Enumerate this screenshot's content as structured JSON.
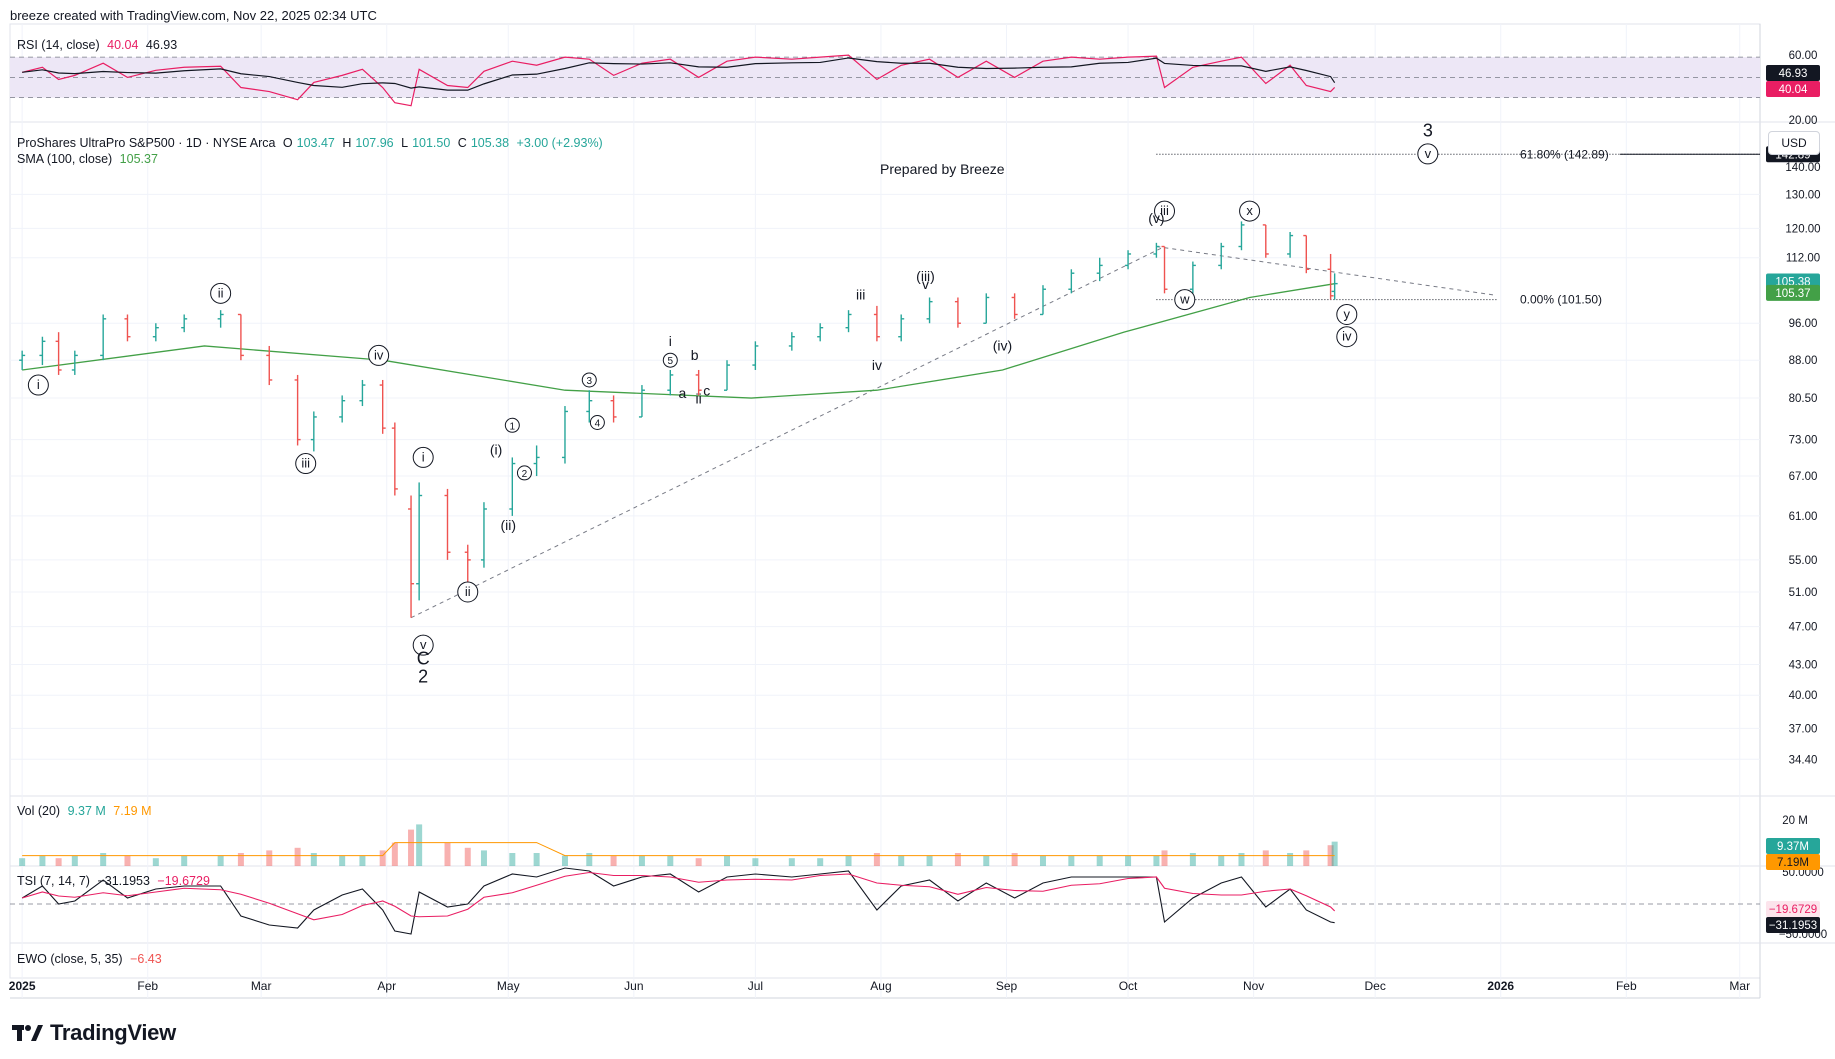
{
  "header": {
    "text": "breeze created with TradingView.com, Nov 22, 2025 02:34 UTC"
  },
  "brand": {
    "name": "TradingView"
  },
  "currency_button": "USD",
  "prepared_label": "Prepared by Breeze",
  "colors": {
    "up": "#26a69a",
    "down": "#ef5350",
    "sma": "#43a047",
    "rsi": "#e91e63",
    "rsi_ma": "#131722",
    "rsi_band": "#ede7f6",
    "vol_ma": "#ff9800",
    "tsi": "#131722",
    "tsi_signal": "#e91e63",
    "last_price_badge": "#26a69a"
  },
  "legends": {
    "rsi": {
      "name": "RSI (14, close)",
      "v1": "40.04",
      "v2": "46.93"
    },
    "main": {
      "name": "ProShares UltraPro S&P500 · 1D · NYSE Arca",
      "o_label": "O",
      "o": "103.47",
      "h_label": "H",
      "h": "107.96",
      "l_label": "L",
      "l": "101.50",
      "c_label": "C",
      "c": "105.38",
      "chg": "+3.00 (+2.93%)"
    },
    "sma": {
      "name": "SMA (100, close)",
      "v": "105.37"
    },
    "vol": {
      "name": "Vol (20)",
      "v1": "9.37 M",
      "v2": "7.19 M"
    },
    "tsi": {
      "name": "TSI (7, 14, 7)",
      "v1": "−31.1953",
      "v2": "−19.6729"
    },
    "ewo": {
      "name": "EWO (close, 5, 35)",
      "v": "−6.43"
    }
  },
  "axes": {
    "price_ticks": [
      "130.00",
      "120.00",
      "112.00",
      "96.00",
      "88.00",
      "80.50",
      "73.00",
      "67.00",
      "61.00",
      "55.00",
      "51.00",
      "47.00",
      "43.00",
      "40.00",
      "37.00",
      "34.40"
    ],
    "price_ticks_partial": [
      "140.00"
    ],
    "rsi_ticks": [
      "60.00",
      "20.00"
    ],
    "vol_ticks": [
      "20 M"
    ],
    "tsi_ticks": [
      "50.0000",
      "−50.0000"
    ],
    "time_labels": [
      "2025",
      "Feb",
      "Mar",
      "Apr",
      "May",
      "Jun",
      "Jul",
      "Aug",
      "Sep",
      "Oct",
      "Nov",
      "Dec",
      "2026",
      "Feb",
      "Mar"
    ],
    "scale": "log"
  },
  "badges": {
    "rsi_ma": "46.93",
    "rsi": "40.04",
    "fib": "142.89",
    "close": "105.38",
    "sma": "105.37",
    "vol": "9.37M",
    "vol_ma": "7.19M",
    "tsi_signal": "−19.6729",
    "tsi": "−31.1953"
  },
  "fib": {
    "top_label": "61.80% (142.89)",
    "bottom_label": "0.00% (101.50)"
  },
  "annotations": {
    "circled": [
      "i",
      "ii",
      "iii",
      "iv",
      "v",
      "i",
      "ii",
      "iii",
      "iv",
      "v",
      "w",
      "x",
      "y"
    ],
    "numbers": [
      "1",
      "2",
      "3",
      "4",
      "5"
    ],
    "plain": [
      "C",
      "2",
      "3",
      "(i)",
      "(ii)",
      "(iii)",
      "(iv)",
      "(v)",
      "i",
      "ii",
      "iii",
      "iv",
      "v",
      "a",
      "b",
      "c"
    ]
  },
  "chart_data": {
    "type": "candlestick",
    "title": "ProShares UltraPro S&P500 · 1D · NYSE Arca",
    "series": [
      {
        "name": "OHLC",
        "ohlc": [
          {
            "date": "2025-01-01",
            "o": 88,
            "h": 90,
            "l": 86,
            "c": 89
          },
          {
            "date": "2025-01-06",
            "o": 89,
            "h": 93,
            "l": 87,
            "c": 92
          },
          {
            "date": "2025-01-10",
            "o": 92,
            "h": 94,
            "l": 85,
            "c": 86
          },
          {
            "date": "2025-01-14",
            "o": 86,
            "h": 90,
            "l": 85,
            "c": 89
          },
          {
            "date": "2025-01-21",
            "o": 89,
            "h": 98,
            "l": 88,
            "c": 97
          },
          {
            "date": "2025-01-27",
            "o": 97,
            "h": 98,
            "l": 92,
            "c": 93
          },
          {
            "date": "2025-02-03",
            "o": 93,
            "h": 96,
            "l": 92,
            "c": 95
          },
          {
            "date": "2025-02-10",
            "o": 95,
            "h": 98,
            "l": 94,
            "c": 97
          },
          {
            "date": "2025-02-19",
            "o": 97,
            "h": 99,
            "l": 95,
            "c": 98
          },
          {
            "date": "2025-02-24",
            "o": 98,
            "h": 98,
            "l": 88,
            "c": 89
          },
          {
            "date": "2025-03-03",
            "o": 89,
            "h": 91,
            "l": 83,
            "c": 84
          },
          {
            "date": "2025-03-10",
            "o": 84,
            "h": 85,
            "l": 72,
            "c": 73
          },
          {
            "date": "2025-03-14",
            "o": 73,
            "h": 78,
            "l": 71,
            "c": 77
          },
          {
            "date": "2025-03-21",
            "o": 77,
            "h": 81,
            "l": 76,
            "c": 80
          },
          {
            "date": "2025-03-26",
            "o": 80,
            "h": 84,
            "l": 79,
            "c": 83
          },
          {
            "date": "2025-03-31",
            "o": 83,
            "h": 84,
            "l": 74,
            "c": 75
          },
          {
            "date": "2025-04-03",
            "o": 75,
            "h": 76,
            "l": 64,
            "c": 65
          },
          {
            "date": "2025-04-07",
            "o": 62,
            "h": 64,
            "l": 48,
            "c": 52
          },
          {
            "date": "2025-04-09",
            "o": 52,
            "h": 66,
            "l": 50,
            "c": 64
          },
          {
            "date": "2025-04-16",
            "o": 64,
            "h": 65,
            "l": 55,
            "c": 56
          },
          {
            "date": "2025-04-21",
            "o": 56,
            "h": 57,
            "l": 52,
            "c": 55
          },
          {
            "date": "2025-04-25",
            "o": 55,
            "h": 63,
            "l": 54,
            "c": 62
          },
          {
            "date": "2025-05-02",
            "o": 62,
            "h": 70,
            "l": 61,
            "c": 69
          },
          {
            "date": "2025-05-08",
            "o": 69,
            "h": 72,
            "l": 67,
            "c": 70
          },
          {
            "date": "2025-05-15",
            "o": 70,
            "h": 79,
            "l": 69,
            "c": 78
          },
          {
            "date": "2025-05-21",
            "o": 78,
            "h": 82,
            "l": 76,
            "c": 80
          },
          {
            "date": "2025-05-27",
            "o": 80,
            "h": 81,
            "l": 76,
            "c": 77
          },
          {
            "date": "2025-06-03",
            "o": 77,
            "h": 83,
            "l": 77,
            "c": 82
          },
          {
            "date": "2025-06-10",
            "o": 82,
            "h": 86,
            "l": 81,
            "c": 85
          },
          {
            "date": "2025-06-17",
            "o": 85,
            "h": 86,
            "l": 81,
            "c": 82
          },
          {
            "date": "2025-06-24",
            "o": 82,
            "h": 88,
            "l": 82,
            "c": 87
          },
          {
            "date": "2025-07-01",
            "o": 87,
            "h": 92,
            "l": 86,
            "c": 91
          },
          {
            "date": "2025-07-10",
            "o": 91,
            "h": 94,
            "l": 90,
            "c": 93
          },
          {
            "date": "2025-07-17",
            "o": 93,
            "h": 96,
            "l": 92,
            "c": 95
          },
          {
            "date": "2025-07-24",
            "o": 95,
            "h": 99,
            "l": 94,
            "c": 98
          },
          {
            "date": "2025-07-31",
            "o": 98,
            "h": 100,
            "l": 92,
            "c": 93
          },
          {
            "date": "2025-08-06",
            "o": 93,
            "h": 98,
            "l": 92,
            "c": 97
          },
          {
            "date": "2025-08-13",
            "o": 97,
            "h": 102,
            "l": 96,
            "c": 101
          },
          {
            "date": "2025-08-20",
            "o": 101,
            "h": 102,
            "l": 95,
            "c": 96
          },
          {
            "date": "2025-08-27",
            "o": 96,
            "h": 103,
            "l": 96,
            "c": 102
          },
          {
            "date": "2025-09-03",
            "o": 102,
            "h": 103,
            "l": 97,
            "c": 98
          },
          {
            "date": "2025-09-10",
            "o": 98,
            "h": 105,
            "l": 98,
            "c": 104
          },
          {
            "date": "2025-09-17",
            "o": 104,
            "h": 109,
            "l": 103,
            "c": 108
          },
          {
            "date": "2025-09-24",
            "o": 108,
            "h": 112,
            "l": 106,
            "c": 110
          },
          {
            "date": "2025-10-01",
            "o": 110,
            "h": 114,
            "l": 109,
            "c": 113
          },
          {
            "date": "2025-10-08",
            "o": 113,
            "h": 116,
            "l": 112,
            "c": 115
          },
          {
            "date": "2025-10-10",
            "o": 115,
            "h": 115,
            "l": 103,
            "c": 104
          },
          {
            "date": "2025-10-17",
            "o": 104,
            "h": 111,
            "l": 103,
            "c": 110
          },
          {
            "date": "2025-10-24",
            "o": 110,
            "h": 116,
            "l": 109,
            "c": 115
          },
          {
            "date": "2025-10-29",
            "o": 115,
            "h": 122,
            "l": 114,
            "c": 121
          },
          {
            "date": "2025-11-04",
            "o": 121,
            "h": 121,
            "l": 112,
            "c": 113
          },
          {
            "date": "2025-11-10",
            "o": 113,
            "h": 119,
            "l": 112,
            "c": 118
          },
          {
            "date": "2025-11-14",
            "o": 118,
            "h": 118,
            "l": 108,
            "c": 109
          },
          {
            "date": "2025-11-20",
            "o": 109,
            "h": 113,
            "l": 101.5,
            "c": 102.4
          },
          {
            "date": "2025-11-21",
            "o": 103.47,
            "h": 107.96,
            "l": 101.5,
            "c": 105.38
          }
        ]
      },
      {
        "name": "SMA (100, close)",
        "values": [
          {
            "date": "2025-01-01",
            "v": 86
          },
          {
            "date": "2025-02-15",
            "v": 91
          },
          {
            "date": "2025-03-31",
            "v": 88
          },
          {
            "date": "2025-05-15",
            "v": 82
          },
          {
            "date": "2025-06-30",
            "v": 80.5
          },
          {
            "date": "2025-07-31",
            "v": 82
          },
          {
            "date": "2025-08-31",
            "v": 86
          },
          {
            "date": "2025-09-30",
            "v": 94
          },
          {
            "date": "2025-10-31",
            "v": 102
          },
          {
            "date": "2025-11-21",
            "v": 105.37
          }
        ]
      }
    ],
    "y_scale": "log",
    "ylim": [
      32,
      152
    ],
    "xlim": [
      "2024-12-29",
      "2026-03-06"
    ],
    "grid": true,
    "fib_levels": [
      {
        "label": "61.80%",
        "value": 142.89
      },
      {
        "label": "0.00%",
        "value": 101.5
      }
    ],
    "rsi": {
      "last": 40.04,
      "ma_last": 46.93,
      "band": [
        30,
        70
      ]
    },
    "volume": {
      "last": 9.37,
      "ma_last": 7.19,
      "unit": "M"
    },
    "tsi": {
      "last": -31.1953,
      "signal_last": -19.6729
    },
    "ewo": {
      "last": -6.43
    }
  }
}
